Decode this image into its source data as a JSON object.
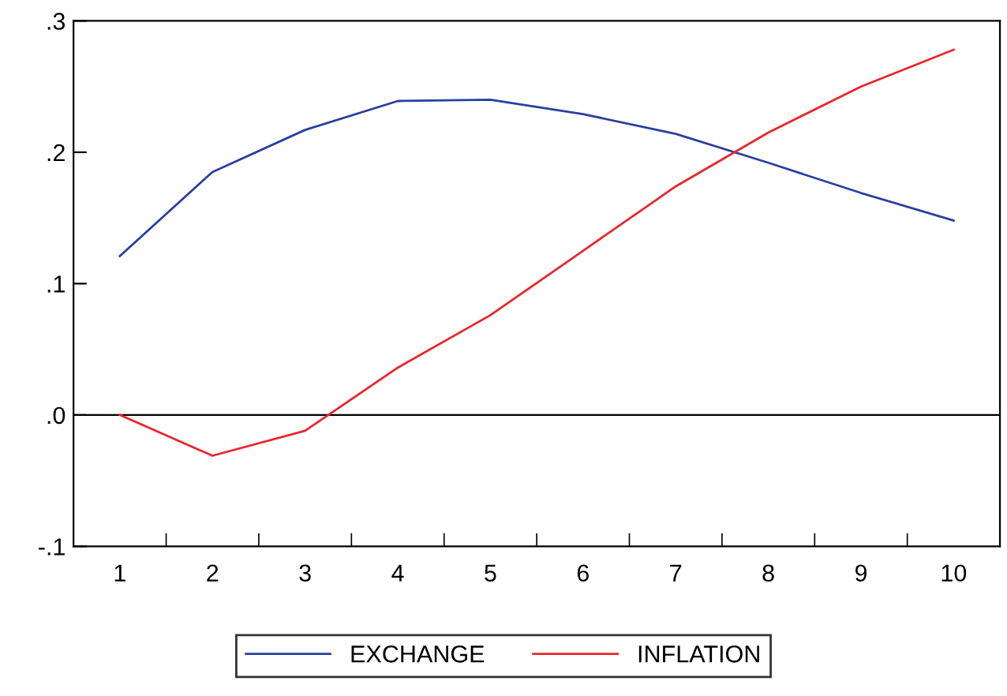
{
  "chart_data": {
    "type": "line",
    "categories": [
      "1",
      "2",
      "3",
      "4",
      "5",
      "6",
      "7",
      "8",
      "9",
      "10"
    ],
    "series": [
      {
        "name": "EXCHANGE",
        "color": "#2b3f9e",
        "values": [
          0.121,
          0.185,
          0.217,
          0.239,
          0.24,
          0.229,
          0.214,
          0.192,
          0.169,
          0.148
        ]
      },
      {
        "name": "INFLATION",
        "color": "#e8262b",
        "values": [
          0.0,
          -0.031,
          -0.012,
          0.036,
          0.076,
          0.125,
          0.174,
          0.215,
          0.25,
          0.278
        ]
      }
    ],
    "ylim": [
      -0.1,
      0.3
    ],
    "yticks": [
      {
        "value": -0.1,
        "label": "-.1"
      },
      {
        "value": 0,
        "label": ".0"
      },
      {
        "value": 0.1,
        "label": ".1"
      },
      {
        "value": 0.2,
        "label": ".2"
      },
      {
        "value": 0.3,
        "label": ".3"
      }
    ],
    "ref_lines": [
      {
        "axis": "y",
        "value": 0,
        "color": "#000000"
      }
    ],
    "grid": false,
    "legend": "bottom",
    "marker": "none",
    "line_style": "solid"
  }
}
